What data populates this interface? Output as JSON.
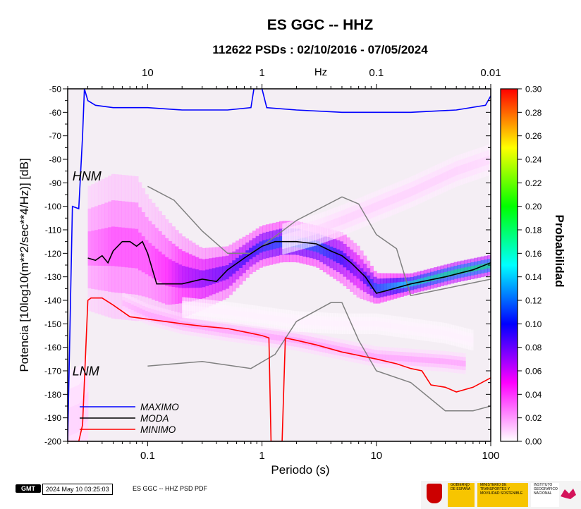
{
  "chart_data": {
    "type": "heatmap",
    "title": "ES GGC -- HHZ",
    "subtitle": "112622 PSDs : 02/10/2016 - 07/05/2024",
    "xlabel": "Periodo (s)",
    "ylabel": "Potencia [10log10(m**2/sec**4/Hz)] [dB]",
    "xscale": "log",
    "xlim": [
      0.02,
      100
    ],
    "ylim": [
      -200,
      -50
    ],
    "x_ticks": [
      0.1,
      1,
      10,
      100
    ],
    "x_tick_labels": [
      "0.1",
      "1",
      "10",
      "100"
    ],
    "y_ticks": [
      -200,
      -190,
      -180,
      -170,
      -160,
      -150,
      -140,
      -130,
      -120,
      -110,
      -100,
      -90,
      -80,
      -70,
      -60,
      -50
    ],
    "y_tick_labels": [
      "-200",
      "-190",
      "-180",
      "-170",
      "-160",
      "-150",
      "-140",
      "-130",
      "-120",
      "-110",
      "-100",
      "-90",
      "-80",
      "-70",
      "-60",
      "-50"
    ],
    "top_axis_label": "Hz",
    "top_axis_ticks": [
      10,
      1,
      0.1,
      0.01
    ],
    "top_axis_tick_labels": [
      "10",
      "1",
      "0.1",
      "0.01"
    ],
    "colorbar": {
      "label": "Probabilidad",
      "range": [
        0,
        0.3
      ],
      "ticks": [
        0,
        0.02,
        0.04,
        0.06,
        0.08,
        0.1,
        0.12,
        0.14,
        0.16,
        0.18,
        0.2,
        0.22,
        0.24,
        0.26,
        0.28,
        0.3
      ],
      "tick_labels": [
        "0.00",
        "0.02",
        "0.04",
        "0.06",
        "0.08",
        "0.10",
        "0.12",
        "0.14",
        "0.16",
        "0.18",
        "0.20",
        "0.22",
        "0.24",
        "0.26",
        "0.28",
        "0.30"
      ],
      "colors": [
        "#ffffff",
        "#ff00ff",
        "#0000ff",
        "#00ffff",
        "#00ff00",
        "#ffff00",
        "#ff0000"
      ]
    },
    "series": [
      {
        "name": "MAXIMO",
        "color": "#0000ff",
        "x": [
          0.02,
          0.022,
          0.025,
          0.027,
          0.028,
          0.03,
          0.035,
          0.05,
          0.1,
          0.2,
          0.5,
          0.8,
          0.85,
          1.0,
          1.1,
          2,
          5,
          10,
          20,
          50,
          90,
          100
        ],
        "y": [
          -200,
          -100,
          -101,
          -70,
          -50,
          -55,
          -57,
          -58,
          -58,
          -59,
          -59,
          -58,
          -50,
          -50,
          -58,
          -59,
          -60,
          -60,
          -60,
          -59,
          -57,
          -53
        ]
      },
      {
        "name": "MODA",
        "color": "#000000",
        "x": [
          0.03,
          0.035,
          0.04,
          0.045,
          0.05,
          0.06,
          0.07,
          0.08,
          0.09,
          0.1,
          0.12,
          0.2,
          0.3,
          0.4,
          0.5,
          0.7,
          1.0,
          1.3,
          1.6,
          2,
          3,
          4,
          5,
          6,
          8,
          10,
          12,
          20,
          40,
          70,
          100
        ],
        "y": [
          -122,
          -123,
          -121,
          -124,
          -119,
          -115,
          -115,
          -117,
          -115,
          -120,
          -133,
          -133,
          -131,
          -132,
          -127,
          -122,
          -117,
          -115,
          -115,
          -115,
          -116,
          -119,
          -121,
          -124,
          -130,
          -137,
          -136,
          -133,
          -130,
          -127,
          -124
        ]
      },
      {
        "name": "MINIMO",
        "color": "#ff0000",
        "x": [
          0.02,
          0.025,
          0.027,
          0.03,
          0.032,
          0.04,
          0.05,
          0.07,
          0.1,
          0.2,
          0.3,
          0.5,
          0.8,
          1.0,
          1.15,
          1.2,
          1.5,
          1.6,
          2,
          3,
          5,
          10,
          15,
          20,
          25,
          30,
          40,
          50,
          70,
          100
        ],
        "y": [
          -200,
          -200,
          -193,
          -140,
          -139,
          -139,
          -142,
          -147,
          -148,
          -150,
          -151,
          -152,
          -154,
          -155,
          -156,
          -200,
          -200,
          -156,
          -157,
          -159,
          -162,
          -165,
          -167,
          -169,
          -170,
          -176,
          -177,
          -179,
          -177,
          -173
        ]
      }
    ],
    "reference_models": [
      {
        "name": "HNM",
        "color": "#808080",
        "x": [
          0.1,
          0.17,
          0.3,
          0.5,
          0.8,
          1,
          2,
          5,
          7,
          10,
          15,
          20,
          100
        ],
        "y": [
          -91.5,
          -97.4,
          -110.5,
          -120,
          -120,
          -117,
          -106,
          -96,
          -99,
          -112,
          -118,
          -138,
          -131
        ]
      },
      {
        "name": "LNM",
        "color": "#808080",
        "x": [
          0.1,
          0.3,
          0.8,
          1.3,
          2,
          4,
          5,
          7,
          10,
          20,
          40,
          70,
          100
        ],
        "y": [
          -168,
          -166,
          -169,
          -163,
          -149,
          -141,
          -141,
          -157,
          -170,
          -175,
          -187,
          -187,
          -185
        ]
      }
    ],
    "density_ridges": [
      {
        "x": [
          0.03,
          0.05,
          0.08,
          0.1,
          0.15,
          0.2,
          0.3,
          0.5,
          0.8,
          1.0,
          1.5,
          2,
          3,
          5,
          7,
          10,
          20,
          50,
          100
        ],
        "y": [
          -118,
          -117,
          -118,
          -122,
          -128,
          -130,
          -131,
          -128,
          -120,
          -117,
          -115,
          -115,
          -117,
          -122,
          -128,
          -135,
          -133,
          -128,
          -125
        ],
        "width": [
          12,
          14,
          14,
          12,
          10,
          8,
          6,
          5,
          4,
          4,
          4,
          4,
          4,
          5,
          5,
          3,
          2,
          2,
          2
        ],
        "prob": [
          0.03,
          0.04,
          0.04,
          0.04,
          0.05,
          0.07,
          0.08,
          0.09,
          0.1,
          0.11,
          0.12,
          0.12,
          0.12,
          0.1,
          0.08,
          0.12,
          0.16,
          0.18,
          0.18
        ]
      },
      {
        "x": [
          1.5,
          3,
          5,
          10,
          20,
          50,
          100
        ],
        "y": [
          -114,
          -110,
          -106,
          -100,
          -94,
          -85,
          -80
        ],
        "width": [
          3,
          3,
          3,
          3,
          3,
          3,
          3
        ],
        "prob": [
          0.005,
          0.008,
          0.01,
          0.01,
          0.01,
          0.01,
          0.008
        ]
      },
      {
        "x": [
          0.06,
          0.1,
          0.2,
          0.5,
          1,
          2,
          5,
          10,
          20,
          40,
          60
        ],
        "y": [
          -141,
          -146,
          -150,
          -153,
          -155,
          -157,
          -161,
          -164,
          -165,
          -166,
          -167
        ],
        "width": [
          2,
          2,
          2,
          2,
          2,
          2,
          2,
          2,
          2,
          2,
          2
        ],
        "prob": [
          0.015,
          0.02,
          0.02,
          0.02,
          0.02,
          0.02,
          0.02,
          0.02,
          0.02,
          0.02,
          0.02
        ]
      },
      {
        "x": [
          0.2,
          0.5,
          1,
          2,
          5,
          10,
          20,
          40,
          70
        ],
        "y": [
          -143,
          -145,
          -147,
          -149,
          -150,
          -150,
          -152,
          -154,
          -157
        ],
        "width": [
          2,
          2,
          2,
          2,
          2,
          2,
          2,
          2,
          2
        ],
        "prob": [
          0.003,
          0.003,
          0.003,
          0.003,
          0.003,
          0.003,
          0.003,
          0.003,
          0.003
        ]
      },
      {
        "x": [
          0.02,
          0.025,
          0.03
        ],
        "y": [
          -192,
          -190,
          -185
        ],
        "width": [
          10,
          10,
          10
        ],
        "prob": [
          0.01,
          0.01,
          0.01
        ]
      }
    ],
    "legend": {
      "position": "bottom-left",
      "entries": [
        "MAXIMO",
        "MODA",
        "MINIMO"
      ]
    },
    "annotations": [
      {
        "text": "HNM",
        "x": 0.022,
        "y": -89
      },
      {
        "text": "LNM",
        "x": 0.022,
        "y": -172
      }
    ]
  },
  "footer": {
    "gmt_logo": "GMT",
    "timestamp": "2024 May 10 03:25:03",
    "caption": "ES GGC -- HHZ PSD PDF",
    "logo_gobierno": "GOBIERNO DE ESPAÑA",
    "logo_ministerio": "MINISTERIO DE TRANSPORTES Y MOVILIDAD SOSTENIBLE",
    "logo_ign": "INSTITUTO GEOGRÁFICO NACIONAL"
  }
}
